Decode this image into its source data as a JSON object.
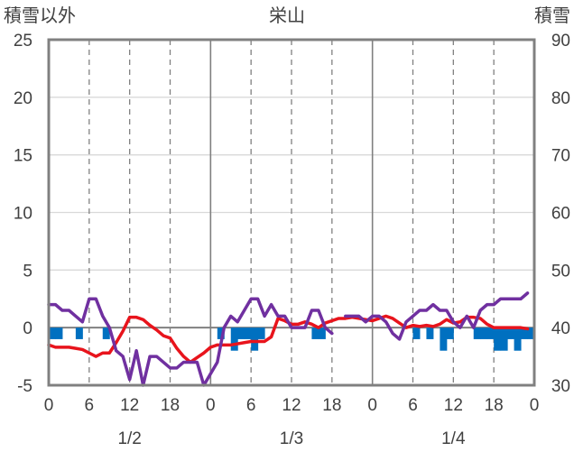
{
  "chart_data": {
    "type": "line",
    "title": "栄山",
    "left_axis_title": "積雪以外",
    "right_axis_title": "積雪",
    "left_axis": {
      "ylim": [
        -5,
        25
      ],
      "ticks": [
        "-5",
        "0",
        "5",
        "10",
        "15",
        "20",
        "25"
      ]
    },
    "right_axis": {
      "ylim": [
        30,
        90
      ],
      "ticks": [
        "30",
        "40",
        "50",
        "60",
        "70",
        "80",
        "90"
      ]
    },
    "x_tick_labels": [
      "0",
      "6",
      "12",
      "18",
      "0",
      "6",
      "12",
      "18",
      "0",
      "6",
      "12",
      "18",
      "0"
    ],
    "date_labels": [
      {
        "label": "1/2",
        "at_hour": 12
      },
      {
        "label": "1/3",
        "at_hour": 36
      },
      {
        "label": "1/4",
        "at_hour": 60
      }
    ],
    "xlim": [
      0,
      72
    ],
    "grid": "dashed vertical every 6h, solid at day boundaries, horizontal every 5",
    "series": [
      {
        "color": "#e8141c",
        "axis": "left",
        "x": [
          0,
          1,
          2,
          3,
          4,
          5,
          6,
          7,
          8,
          9,
          10,
          11,
          12,
          13,
          14,
          15,
          16,
          17,
          18,
          19,
          20,
          21,
          22,
          23,
          24,
          25,
          26,
          27,
          28,
          29,
          30,
          31,
          32,
          33,
          34,
          35,
          36,
          37,
          38,
          39,
          40,
          41,
          42,
          43,
          44,
          45,
          46,
          47,
          48,
          49,
          50,
          51,
          52,
          53,
          54,
          55,
          56,
          57,
          58,
          59,
          60,
          61,
          62,
          63,
          64,
          65,
          66,
          67,
          68,
          69,
          70,
          71
        ],
        "values": [
          -1.5,
          -1.7,
          -1.7,
          -1.7,
          -1.8,
          -1.9,
          -2.2,
          -2.5,
          -2.2,
          -2.2,
          -1.3,
          -0.3,
          0.9,
          0.9,
          0.7,
          0.2,
          -0.2,
          -0.7,
          -0.9,
          -1.8,
          -2.5,
          -3.0,
          -2.6,
          -2.2,
          -1.7,
          -1.5,
          -1.5,
          -1.5,
          -1.4,
          -1.3,
          -1.2,
          -1.2,
          -1.2,
          -0.8,
          0.8,
          0.6,
          0.3,
          0.3,
          0.5,
          0.3,
          0.0,
          0.4,
          0.6,
          0.8,
          0.8,
          0.9,
          0.8,
          0.7,
          0.6,
          0.8,
          1.0,
          0.8,
          0.4,
          0.0,
          0.2,
          0.1,
          0.2,
          0.1,
          0.3,
          0.7,
          0.4,
          0.5,
          0.9,
          0.9,
          0.8,
          0.3,
          0.0,
          0.0,
          0.0,
          0.0,
          0.0,
          -0.1
        ]
      },
      {
        "color": "#7030a0",
        "axis": "left",
        "x": [
          0,
          1,
          2,
          3,
          4,
          5,
          6,
          7,
          8,
          9,
          10,
          11,
          12,
          13,
          14,
          15,
          16,
          17,
          18,
          19,
          20,
          21,
          22,
          23,
          24,
          25,
          26,
          27,
          28,
          29,
          30,
          31,
          32,
          33,
          34,
          35,
          36,
          37,
          38,
          39,
          40,
          41,
          42,
          43,
          44,
          45,
          46,
          47,
          48,
          49,
          50,
          51,
          52,
          53,
          54,
          55,
          56,
          57,
          58,
          59,
          60,
          61,
          62,
          63,
          64,
          65,
          66,
          67,
          68,
          69,
          70,
          71
        ],
        "values": [
          2.0,
          2.0,
          1.5,
          1.5,
          1.0,
          0.5,
          2.5,
          2.5,
          1.0,
          0.0,
          -2.0,
          -2.5,
          -4.5,
          -2.0,
          -5.0,
          -2.5,
          -2.5,
          -3.0,
          -3.5,
          -3.5,
          -3.0,
          -3.0,
          -3.0,
          -5.0,
          -4.0,
          -3.0,
          0.0,
          1.0,
          0.5,
          1.5,
          2.5,
          2.5,
          1.0,
          2.0,
          1.0,
          1.0,
          0.0,
          0.0,
          0.0,
          1.5,
          1.5,
          0.0,
          -0.5,
          null,
          1.0,
          1.0,
          1.0,
          0.5,
          1.0,
          1.0,
          0.5,
          -0.5,
          -1.0,
          0.5,
          1.0,
          1.5,
          1.5,
          2.0,
          1.5,
          1.5,
          0.5,
          0.0,
          1.0,
          0.0,
          1.5,
          2.0,
          2.0,
          2.5,
          2.5,
          2.5,
          2.5,
          3.0
        ]
      },
      {
        "type": "bar",
        "color": "#0070c0",
        "axis": "left",
        "baseline": 0,
        "x": [
          0,
          1,
          2,
          3,
          4,
          5,
          6,
          7,
          8,
          9,
          10,
          11,
          12,
          13,
          14,
          15,
          16,
          17,
          18,
          19,
          20,
          21,
          22,
          23,
          24,
          25,
          26,
          27,
          28,
          29,
          30,
          31,
          32,
          33,
          34,
          35,
          36,
          37,
          38,
          39,
          40,
          41,
          42,
          43,
          44,
          45,
          46,
          47,
          48,
          49,
          50,
          51,
          52,
          53,
          54,
          55,
          56,
          57,
          58,
          59,
          60,
          61,
          62,
          63,
          64,
          65,
          66,
          67,
          68,
          69,
          70,
          71
        ],
        "values": [
          -1.0,
          -1.0,
          0,
          0,
          -1.0,
          0,
          0,
          0,
          -1.0,
          0,
          0,
          0,
          0,
          0,
          0,
          0,
          0,
          0,
          0,
          0,
          0,
          0,
          0,
          0,
          0,
          -1.0,
          0,
          -2.0,
          -1.0,
          -1.0,
          -2.0,
          -1.0,
          0,
          0,
          0,
          0,
          0,
          0,
          0,
          -1.0,
          -1.0,
          0,
          0,
          0,
          0,
          0,
          0,
          0,
          0,
          0,
          0,
          0,
          0,
          0,
          -1.0,
          0,
          -1.0,
          0,
          -2.0,
          -1.0,
          0,
          0,
          0,
          -1.0,
          -1.0,
          -1.0,
          -2.0,
          -2.0,
          -1.0,
          -2.0,
          -1.0,
          -1.0
        ]
      }
    ]
  }
}
